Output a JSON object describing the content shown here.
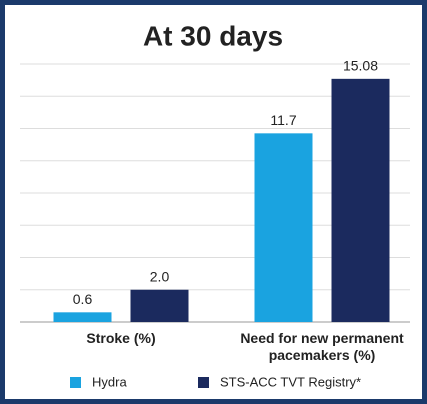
{
  "chart_data": {
    "type": "bar",
    "title": "At 30 days",
    "categories": [
      "Stroke (%)",
      "Need for new permanent pacemakers (%)"
    ],
    "series": [
      {
        "name": "Hydra",
        "color": "#1aa3e0",
        "values": [
          0.6,
          11.7
        ]
      },
      {
        "name": "STS-ACC TVT Registry*",
        "color": "#1b2a5e",
        "values": [
          2.0,
          15.08
        ],
        "value_labels": [
          "2.0",
          "15.08"
        ]
      }
    ],
    "ylim": [
      0,
      16
    ],
    "yticks": [
      0,
      2,
      4,
      6,
      8,
      10,
      12,
      14,
      16
    ],
    "grid": true,
    "legend": "bottom"
  }
}
